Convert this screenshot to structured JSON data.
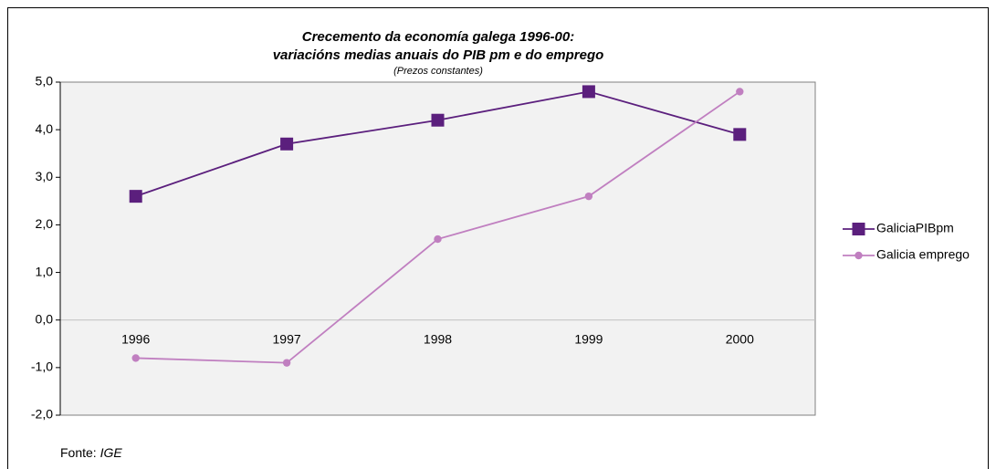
{
  "chart_data": {
    "type": "line",
    "title": [
      "Crecemento da economía galega 1996-00:",
      "variacións medias anuais do PIB pm e do emprego"
    ],
    "subtitle": "(Prezos constantes)",
    "categories": [
      "1996",
      "1997",
      "1998",
      "1999",
      "2000"
    ],
    "series": [
      {
        "name": "GaliciaPIBpm",
        "color": "#5b1f7d",
        "marker": "square",
        "values": [
          2.6,
          3.7,
          4.2,
          4.8,
          3.9
        ]
      },
      {
        "name": "Galicia emprego",
        "color": "#c07fc0",
        "marker": "circle",
        "values": [
          -0.8,
          -0.9,
          1.7,
          2.6,
          4.8
        ]
      }
    ],
    "ylim": [
      -2,
      5
    ],
    "yticks": [
      {
        "value": -2,
        "label": "-2,0"
      },
      {
        "value": -1,
        "label": "-1,0"
      },
      {
        "value": 0,
        "label": "0,0"
      },
      {
        "value": 1,
        "label": "1,0"
      },
      {
        "value": 2,
        "label": "2,0"
      },
      {
        "value": 3,
        "label": "3,0"
      },
      {
        "value": 4,
        "label": "4,0"
      },
      {
        "value": 5,
        "label": "5,0"
      }
    ],
    "legend": "right",
    "source_label": "Fonte:",
    "source": "IGE"
  }
}
